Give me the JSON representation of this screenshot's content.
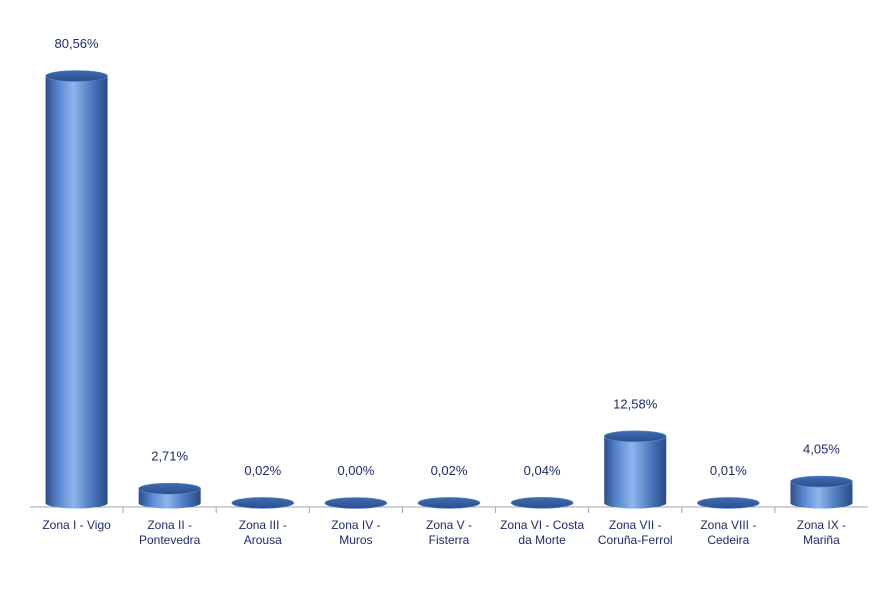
{
  "chart_data": {
    "type": "bar",
    "style": "3d-cylinder",
    "categories": [
      [
        "Zona I - Vigo"
      ],
      [
        "Zona II -",
        "Pontevedra"
      ],
      [
        "Zona III -",
        "Arousa"
      ],
      [
        "Zona IV -",
        "Muros"
      ],
      [
        "Zona V -",
        "Fisterra"
      ],
      [
        "Zona VI - Costa",
        "da Morte"
      ],
      [
        "Zona VII -",
        "Coruña-Ferrol"
      ],
      [
        "Zona VIII -",
        "Cedeira"
      ],
      [
        "Zona IX -",
        "Mariña"
      ]
    ],
    "values": [
      80.56,
      2.71,
      0.02,
      0.0,
      0.02,
      0.04,
      12.58,
      0.01,
      4.05
    ],
    "data_labels": [
      "80,56%",
      "2,71%",
      "0,02%",
      "0,00%",
      "0,02%",
      "0,04%",
      "12,58%",
      "0,01%",
      "4,05%"
    ],
    "ylim": [
      0,
      80.56
    ],
    "grid": false,
    "legend": "none",
    "colors": {
      "bar": "#4a78bf",
      "bar_dark": "#2c4f8c",
      "bar_light": "#9cc0ef",
      "label": "#1f2a6b",
      "axis": "#a6a6a6"
    }
  }
}
